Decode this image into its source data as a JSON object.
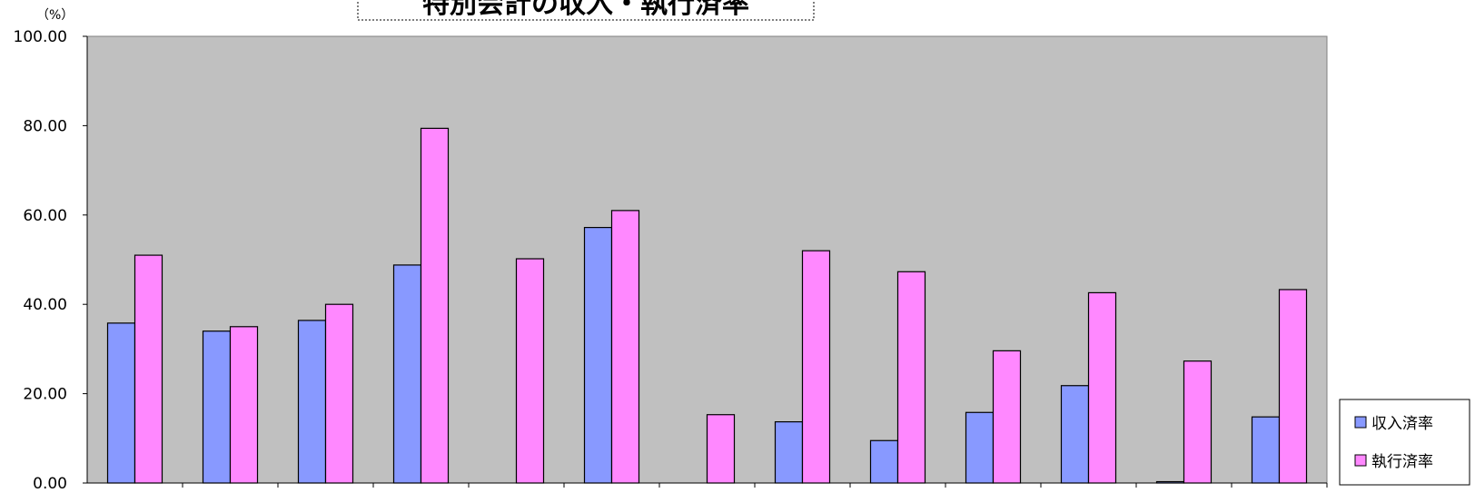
{
  "chart_data": {
    "type": "bar",
    "title": "特別会計の収入・執行済率",
    "unit": "（%）",
    "ylim": [
      0,
      100
    ],
    "y_ticks": [
      "0.00",
      "20.00",
      "40.00",
      "60.00",
      "80.00",
      "100.00"
    ],
    "categories": [
      "",
      "",
      "",
      "",
      "",
      "",
      "",
      "",
      "",
      "",
      "",
      "",
      ""
    ],
    "series": [
      {
        "name": "収入済率",
        "color": "#8899ff",
        "values": [
          35.8,
          34.0,
          36.4,
          48.8,
          0,
          57.2,
          0,
          13.7,
          9.5,
          15.8,
          21.8,
          0.3,
          14.8
        ]
      },
      {
        "name": "執行済率",
        "color": "#ff88ff",
        "values": [
          51.0,
          35.0,
          40.0,
          79.4,
          50.2,
          61.0,
          15.3,
          52.0,
          47.3,
          29.6,
          42.6,
          27.3,
          43.3
        ]
      }
    ],
    "grid": false,
    "plot_background": "#c0c0c0",
    "legend_position": "right-bottom"
  }
}
